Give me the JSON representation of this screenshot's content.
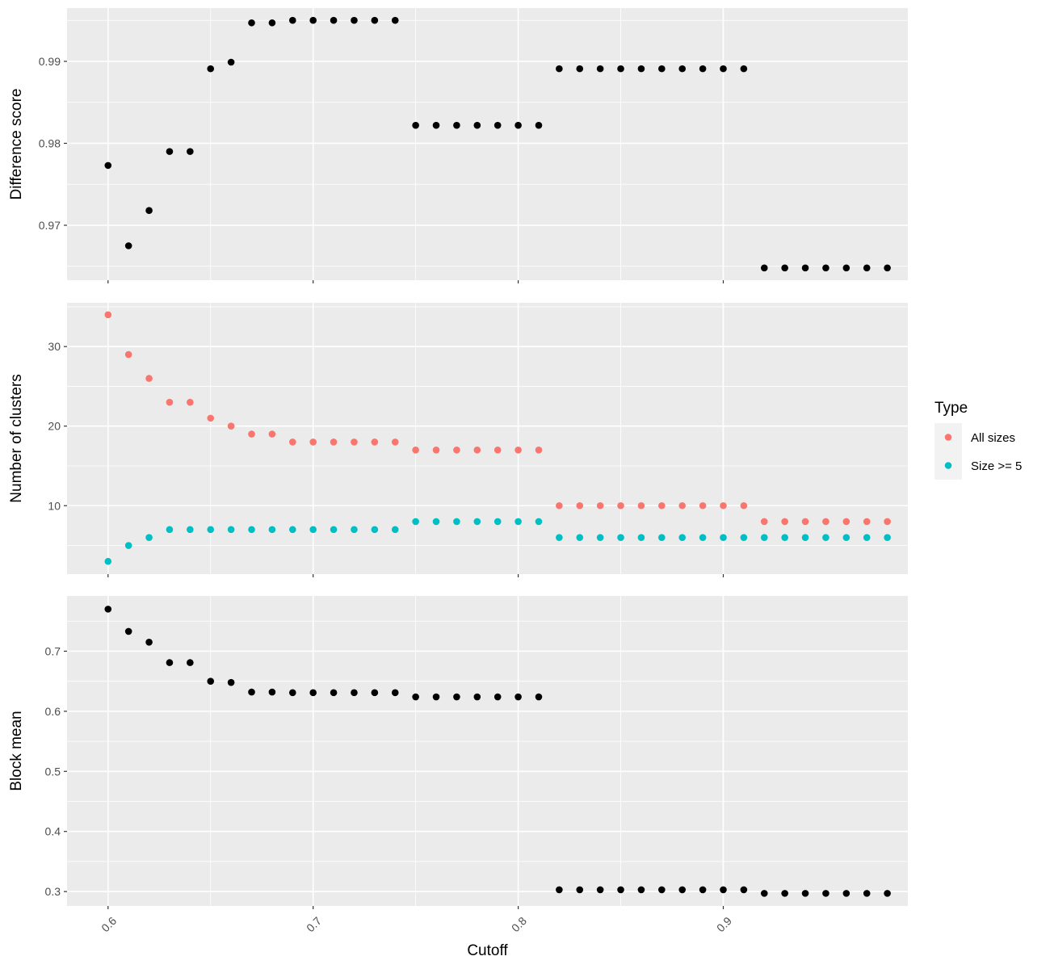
{
  "chart_data": [
    {
      "type": "scatter",
      "panel": "top",
      "ylabel": "Difference score",
      "xlim": [
        0.58,
        0.99
      ],
      "ylim": [
        0.9633,
        0.9965
      ],
      "x_ticks": [
        0.6,
        0.7,
        0.8,
        0.9
      ],
      "y_ticks": [
        0.97,
        0.98,
        0.99
      ],
      "y_tick_labels": [
        "0.97",
        "0.98",
        "0.99"
      ],
      "grid": true,
      "series": [
        {
          "color": "#000000",
          "x": [
            0.6,
            0.61,
            0.62,
            0.63,
            0.64,
            0.65,
            0.66,
            0.67,
            0.68,
            0.69,
            0.7,
            0.71,
            0.72,
            0.73,
            0.74,
            0.75,
            0.76,
            0.77,
            0.78,
            0.79,
            0.8,
            0.81,
            0.82,
            0.83,
            0.84,
            0.85,
            0.86,
            0.87,
            0.88,
            0.89,
            0.9,
            0.91,
            0.92,
            0.93,
            0.94,
            0.95,
            0.96,
            0.97,
            0.98
          ],
          "y": [
            0.9773,
            0.9675,
            0.9718,
            0.979,
            0.979,
            0.9891,
            0.9899,
            0.9947,
            0.9947,
            0.995,
            0.995,
            0.995,
            0.995,
            0.995,
            0.995,
            0.9822,
            0.9822,
            0.9822,
            0.9822,
            0.9822,
            0.9822,
            0.9822,
            0.9891,
            0.9891,
            0.9891,
            0.9891,
            0.9891,
            0.9891,
            0.9891,
            0.9891,
            0.9891,
            0.9891,
            0.9648,
            0.9648,
            0.9648,
            0.9648,
            0.9648,
            0.9648,
            0.9648
          ]
        }
      ]
    },
    {
      "type": "scatter",
      "panel": "middle",
      "ylabel": "Number of clusters",
      "xlim": [
        0.58,
        0.99
      ],
      "ylim": [
        1.4,
        35.5
      ],
      "x_ticks": [
        0.6,
        0.7,
        0.8,
        0.9
      ],
      "y_ticks": [
        10,
        20,
        30
      ],
      "y_tick_labels": [
        "10",
        "20",
        "30"
      ],
      "grid": true,
      "legend": {
        "title": "Type",
        "position": "right"
      },
      "series": [
        {
          "name": "All sizes",
          "color": "#F8766D",
          "x": [
            0.6,
            0.61,
            0.62,
            0.63,
            0.64,
            0.65,
            0.66,
            0.67,
            0.68,
            0.69,
            0.7,
            0.71,
            0.72,
            0.73,
            0.74,
            0.75,
            0.76,
            0.77,
            0.78,
            0.79,
            0.8,
            0.81,
            0.82,
            0.83,
            0.84,
            0.85,
            0.86,
            0.87,
            0.88,
            0.89,
            0.9,
            0.91,
            0.92,
            0.93,
            0.94,
            0.95,
            0.96,
            0.97,
            0.98
          ],
          "y": [
            34,
            29,
            26,
            23,
            23,
            21,
            20,
            19,
            19,
            18,
            18,
            18,
            18,
            18,
            18,
            17,
            17,
            17,
            17,
            17,
            17,
            17,
            10,
            10,
            10,
            10,
            10,
            10,
            10,
            10,
            10,
            10,
            8,
            8,
            8,
            8,
            8,
            8,
            8
          ]
        },
        {
          "name": "Size >= 5",
          "color": "#00BFC4",
          "x": [
            0.6,
            0.61,
            0.62,
            0.63,
            0.64,
            0.65,
            0.66,
            0.67,
            0.68,
            0.69,
            0.7,
            0.71,
            0.72,
            0.73,
            0.74,
            0.75,
            0.76,
            0.77,
            0.78,
            0.79,
            0.8,
            0.81,
            0.82,
            0.83,
            0.84,
            0.85,
            0.86,
            0.87,
            0.88,
            0.89,
            0.9,
            0.91,
            0.92,
            0.93,
            0.94,
            0.95,
            0.96,
            0.97,
            0.98
          ],
          "y": [
            3,
            5,
            6,
            7,
            7,
            7,
            7,
            7,
            7,
            7,
            7,
            7,
            7,
            7,
            7,
            8,
            8,
            8,
            8,
            8,
            8,
            8,
            6,
            6,
            6,
            6,
            6,
            6,
            6,
            6,
            6,
            6,
            6,
            6,
            6,
            6,
            6,
            6,
            6
          ]
        }
      ]
    },
    {
      "type": "scatter",
      "panel": "bottom",
      "ylabel": "Block mean",
      "xlabel": "Cutoff",
      "xlim": [
        0.58,
        0.99
      ],
      "ylim": [
        0.276,
        0.792
      ],
      "x_ticks": [
        0.6,
        0.7,
        0.8,
        0.9
      ],
      "x_tick_labels": [
        "0.6",
        "0.7",
        "0.8",
        "0.9"
      ],
      "y_ticks": [
        0.3,
        0.4,
        0.5,
        0.6,
        0.7
      ],
      "y_tick_labels": [
        "0.3",
        "0.4",
        "0.5",
        "0.6",
        "0.7"
      ],
      "grid": true,
      "series": [
        {
          "color": "#000000",
          "x": [
            0.6,
            0.61,
            0.62,
            0.63,
            0.64,
            0.65,
            0.66,
            0.67,
            0.68,
            0.69,
            0.7,
            0.71,
            0.72,
            0.73,
            0.74,
            0.75,
            0.76,
            0.77,
            0.78,
            0.79,
            0.8,
            0.81,
            0.82,
            0.83,
            0.84,
            0.85,
            0.86,
            0.87,
            0.88,
            0.89,
            0.9,
            0.91,
            0.92,
            0.93,
            0.94,
            0.95,
            0.96,
            0.97,
            0.98
          ],
          "y": [
            0.77,
            0.733,
            0.715,
            0.681,
            0.681,
            0.65,
            0.648,
            0.632,
            0.632,
            0.631,
            0.631,
            0.631,
            0.631,
            0.631,
            0.631,
            0.624,
            0.624,
            0.624,
            0.624,
            0.624,
            0.624,
            0.624,
            0.303,
            0.303,
            0.303,
            0.303,
            0.303,
            0.303,
            0.303,
            0.303,
            0.303,
            0.303,
            0.297,
            0.297,
            0.297,
            0.297,
            0.297,
            0.297,
            0.297
          ]
        }
      ]
    }
  ]
}
